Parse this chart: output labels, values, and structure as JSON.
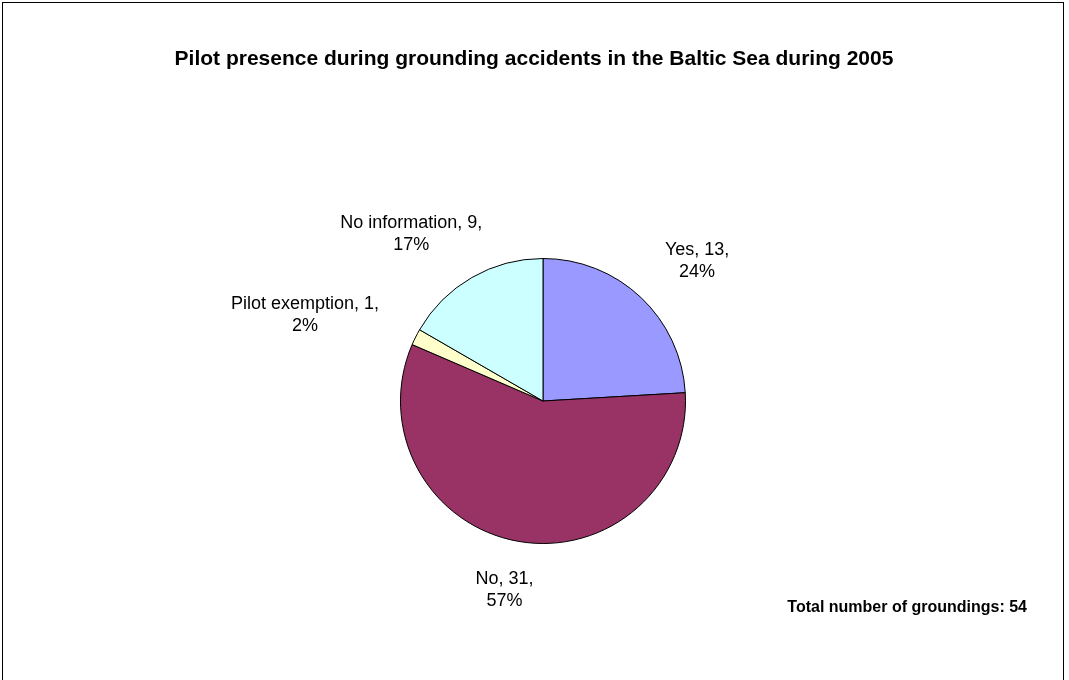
{
  "chart_data": {
    "type": "pie",
    "title": "Pilot presence during grounding accidents in the Baltic Sea during 2005",
    "categories": [
      "Yes",
      "No",
      "Pilot exemption",
      "No information"
    ],
    "values": [
      13,
      31,
      1,
      9
    ],
    "value_labels": [
      "13, 24%",
      "31, 57%",
      "1, 2%",
      "9, 17%"
    ],
    "colors": [
      "#9999ff",
      "#993366",
      "#ffffcc",
      "#ccffff"
    ],
    "legend": false,
    "annotations": [
      "Total number of groundings: 54"
    ]
  }
}
